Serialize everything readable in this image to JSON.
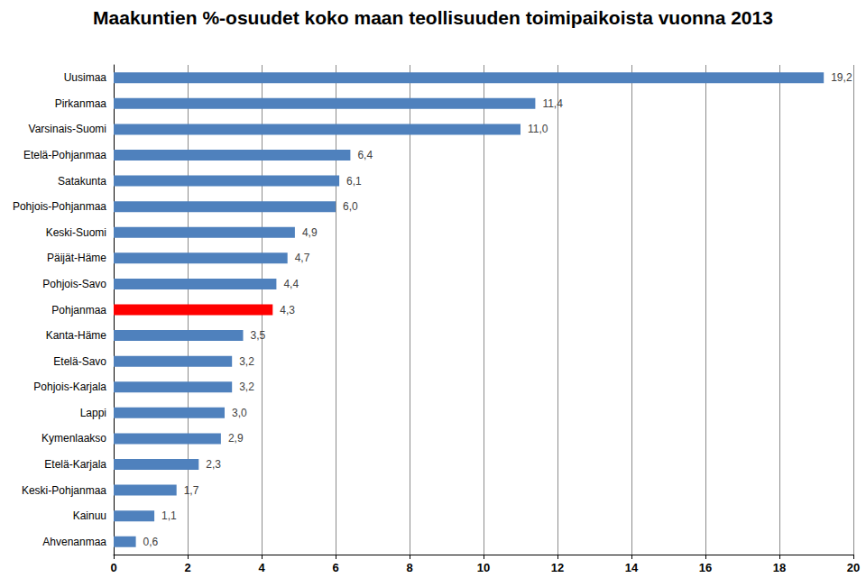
{
  "chart_data": {
    "type": "bar",
    "title": "Maakuntien %-osuudet koko maan teollisuuden toimipaikoista vuonna 2013",
    "orientation": "horizontal",
    "categories": [
      "Uusimaa",
      "Pirkanmaa",
      "Varsinais-Suomi",
      "Etelä-Pohjanmaa",
      "Satakunta",
      "Pohjois-Pohjanmaa",
      "Keski-Suomi",
      "Päijät-Häme",
      "Pohjois-Savo",
      "Pohjanmaa",
      "Kanta-Häme",
      "Etelä-Savo",
      "Pohjois-Karjala",
      "Lappi",
      "Kymenlaakso",
      "Etelä-Karjala",
      "Keski-Pohjanmaa",
      "Kainuu",
      "Ahvenanmaa"
    ],
    "values": [
      19.2,
      11.4,
      11.0,
      6.4,
      6.1,
      6.0,
      4.9,
      4.7,
      4.4,
      4.3,
      3.5,
      3.2,
      3.2,
      3.0,
      2.9,
      2.3,
      1.7,
      1.1,
      0.6
    ],
    "value_labels": [
      "19,2",
      "11,4",
      "11,0",
      "6,4",
      "6,1",
      "6,0",
      "4,9",
      "4,7",
      "4,4",
      "4,3",
      "3,5",
      "3,2",
      "3,2",
      "3,0",
      "2,9",
      "2,3",
      "1,7",
      "1,1",
      "0,6"
    ],
    "colors": [
      "#4f81bd",
      "#4f81bd",
      "#4f81bd",
      "#4f81bd",
      "#4f81bd",
      "#4f81bd",
      "#4f81bd",
      "#4f81bd",
      "#4f81bd",
      "#ff0000",
      "#4f81bd",
      "#4f81bd",
      "#4f81bd",
      "#4f81bd",
      "#4f81bd",
      "#4f81bd",
      "#4f81bd",
      "#4f81bd",
      "#4f81bd"
    ],
    "xlim": [
      0,
      20
    ],
    "xticks": [
      0,
      2,
      4,
      6,
      8,
      10,
      12,
      14,
      16,
      18,
      20
    ],
    "grid": true,
    "data_labels": true
  }
}
